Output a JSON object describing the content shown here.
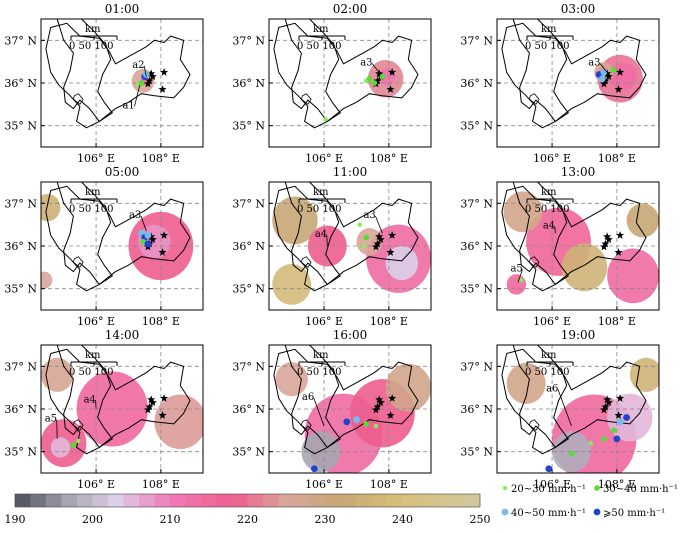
{
  "chart_data": {
    "type": "map-panels",
    "lon_range": [
      104.3,
      109.3
    ],
    "lat_range": [
      34.5,
      37.5
    ],
    "x_ticks": [
      {
        "v": 106,
        "label": "106° E"
      },
      {
        "v": 108,
        "label": "108° E"
      }
    ],
    "y_ticks": [
      {
        "v": 37,
        "label": "37° N"
      },
      {
        "v": 36,
        "label": "36° N"
      },
      {
        "v": 35,
        "label": "35° N"
      }
    ],
    "scale_bar": {
      "unit": "km",
      "labels": [
        "0",
        "50",
        "100"
      ]
    },
    "stations": [
      [
        107.65,
        36.05
      ],
      [
        107.75,
        36.15
      ],
      [
        107.7,
        36.22
      ],
      [
        107.6,
        35.98
      ],
      [
        108.1,
        36.25
      ],
      [
        108.05,
        35.85
      ]
    ],
    "colorbar": {
      "min": 190,
      "max": 250,
      "ticks": [
        190,
        200,
        210,
        220,
        230,
        240,
        250
      ]
    },
    "legend": [
      {
        "label": "20~30 mm·h⁻¹",
        "color": "#88ee55",
        "size": "small"
      },
      {
        "label": "30~40 mm·h⁻¹",
        "color": "#55dd33",
        "size": "medium"
      },
      {
        "label": "40~50 mm·h⁻¹",
        "color": "#77bbee",
        "size": "large"
      },
      {
        "label": "⩾50 mm·h⁻¹",
        "color": "#2244cc",
        "size": "large"
      }
    ],
    "panels": [
      {
        "time": "01:00",
        "labels": [
          {
            "text": "a2",
            "lon": 107.3,
            "lat": 36.45,
            "tlon": 107.55,
            "tlat": 36.15
          },
          {
            "text": "a1",
            "lon": 107.0,
            "lat": 35.5,
            "tlon": 107.35,
            "tlat": 35.95
          }
        ],
        "cloud": [
          {
            "lon": 107.45,
            "lat": 36.05,
            "r": 0.35,
            "v": 225
          },
          {
            "lon": 107.5,
            "lat": 36.05,
            "r": 0.12,
            "v": 215
          }
        ],
        "rain": [
          {
            "lon": 107.5,
            "lat": 36.15,
            "c": 3
          },
          {
            "lon": 107.55,
            "lat": 36.2,
            "c": 2
          },
          {
            "lon": 107.3,
            "lat": 35.95,
            "c": 0
          },
          {
            "lon": 107.4,
            "lat": 36.0,
            "c": 1
          }
        ]
      },
      {
        "time": "02:00",
        "labels": [
          {
            "text": "a3",
            "lon": 107.3,
            "lat": 36.5,
            "tlon": 107.7,
            "tlat": 36.25
          }
        ],
        "cloud": [
          {
            "lon": 107.9,
            "lat": 36.1,
            "r": 0.55,
            "v": 222
          },
          {
            "lon": 107.95,
            "lat": 36.15,
            "r": 0.25,
            "v": 212
          }
        ],
        "rain": [
          {
            "lon": 107.3,
            "lat": 36.05,
            "c": 0
          },
          {
            "lon": 107.4,
            "lat": 36.1,
            "c": 1
          },
          {
            "lon": 107.55,
            "lat": 36.0,
            "c": 1
          },
          {
            "lon": 107.8,
            "lat": 36.15,
            "c": 1
          },
          {
            "lon": 106.05,
            "lat": 35.15,
            "c": 0
          }
        ]
      },
      {
        "time": "03:00",
        "labels": [
          {
            "text": "a3",
            "lon": 107.3,
            "lat": 36.5,
            "tlon": 107.75,
            "tlat": 36.2
          }
        ],
        "cloud": [
          {
            "lon": 108.1,
            "lat": 36.1,
            "r": 0.7,
            "v": 220
          },
          {
            "lon": 108.2,
            "lat": 36.15,
            "r": 0.4,
            "v": 214
          },
          {
            "lon": 107.6,
            "lat": 36.25,
            "r": 0.3,
            "v": 226
          }
        ],
        "rain": [
          {
            "lon": 107.45,
            "lat": 36.2,
            "c": 3
          },
          {
            "lon": 107.55,
            "lat": 36.1,
            "c": 2
          },
          {
            "lon": 107.6,
            "lat": 36.25,
            "c": 2
          },
          {
            "lon": 107.9,
            "lat": 36.3,
            "c": 1
          }
        ]
      },
      {
        "time": "05:00",
        "labels": [
          {
            "text": "a3",
            "lon": 107.2,
            "lat": 36.75,
            "tlon": 107.55,
            "tlat": 36.35
          }
        ],
        "cloud": [
          {
            "lon": 108.0,
            "lat": 36.0,
            "r": 1.0,
            "v": 218
          },
          {
            "lon": 107.8,
            "lat": 36.1,
            "r": 0.5,
            "v": 208
          },
          {
            "lon": 104.5,
            "lat": 36.9,
            "r": 0.4,
            "v": 235
          },
          {
            "lon": 104.4,
            "lat": 35.2,
            "r": 0.25,
            "v": 225
          }
        ],
        "rain": [
          {
            "lon": 107.4,
            "lat": 36.3,
            "c": 2
          },
          {
            "lon": 107.5,
            "lat": 36.2,
            "c": 3
          },
          {
            "lon": 107.6,
            "lat": 36.25,
            "c": 2
          },
          {
            "lon": 107.45,
            "lat": 36.1,
            "c": 1
          },
          {
            "lon": 107.6,
            "lat": 36.05,
            "c": 3
          }
        ]
      },
      {
        "time": "11:00",
        "labels": [
          {
            "text": "a3",
            "lon": 107.4,
            "lat": 36.75,
            "tlon": 107.8,
            "tlat": 36.3
          },
          {
            "text": "a4",
            "lon": 105.9,
            "lat": 36.3,
            "tlon": 106.1,
            "tlat": 36.0
          }
        ],
        "cloud": [
          {
            "lon": 108.3,
            "lat": 35.7,
            "r": 1.0,
            "v": 214
          },
          {
            "lon": 108.4,
            "lat": 35.6,
            "r": 0.5,
            "v": 203
          },
          {
            "lon": 106.1,
            "lat": 36.0,
            "r": 0.6,
            "v": 218
          },
          {
            "lon": 105.1,
            "lat": 36.6,
            "r": 0.7,
            "v": 232
          },
          {
            "lon": 105.0,
            "lat": 35.1,
            "r": 0.6,
            "v": 238
          },
          {
            "lon": 107.4,
            "lat": 36.1,
            "r": 0.4,
            "v": 225
          }
        ],
        "rain": [
          {
            "lon": 107.1,
            "lat": 36.5,
            "c": 0
          },
          {
            "lon": 107.3,
            "lat": 36.2,
            "c": 1
          },
          {
            "lon": 107.2,
            "lat": 36.0,
            "c": 0
          }
        ]
      },
      {
        "time": "13:00",
        "labels": [
          {
            "text": "a4",
            "lon": 105.9,
            "lat": 36.5,
            "tlon": 106.1,
            "tlat": 36.3
          },
          {
            "text": "a5",
            "lon": 104.9,
            "lat": 35.5,
            "tlon": 104.95,
            "tlat": 35.15
          }
        ],
        "cloud": [
          {
            "lon": 106.2,
            "lat": 36.1,
            "r": 1.0,
            "v": 216
          },
          {
            "lon": 108.5,
            "lat": 35.3,
            "r": 0.8,
            "v": 214
          },
          {
            "lon": 105.1,
            "lat": 36.8,
            "r": 0.6,
            "v": 228
          },
          {
            "lon": 104.9,
            "lat": 35.1,
            "r": 0.3,
            "v": 215
          },
          {
            "lon": 107.0,
            "lat": 35.5,
            "r": 0.7,
            "v": 236
          },
          {
            "lon": 108.8,
            "lat": 36.6,
            "r": 0.5,
            "v": 232
          }
        ],
        "rain": [
          {
            "lon": 105.05,
            "lat": 35.2,
            "c": 0
          }
        ]
      },
      {
        "time": "14:00",
        "labels": [
          {
            "text": "a4",
            "lon": 105.8,
            "lat": 36.25,
            "tlon": 106.0,
            "tlat": 36.0
          },
          {
            "text": "a5",
            "lon": 104.6,
            "lat": 35.8,
            "tlon": 104.8,
            "tlat": 35.3
          }
        ],
        "cloud": [
          {
            "lon": 106.5,
            "lat": 36.0,
            "r": 1.1,
            "v": 215
          },
          {
            "lon": 105.0,
            "lat": 35.2,
            "r": 0.7,
            "v": 218
          },
          {
            "lon": 104.9,
            "lat": 35.1,
            "r": 0.3,
            "v": 205
          },
          {
            "lon": 108.6,
            "lat": 35.7,
            "r": 0.8,
            "v": 224
          },
          {
            "lon": 104.8,
            "lat": 36.8,
            "r": 0.5,
            "v": 226
          }
        ],
        "rain": [
          {
            "lon": 105.3,
            "lat": 35.15,
            "c": 1
          },
          {
            "lon": 105.45,
            "lat": 35.25,
            "c": 0
          }
        ]
      },
      {
        "time": "16:00",
        "labels": [
          {
            "text": "a6",
            "lon": 105.5,
            "lat": 36.3,
            "tlon": 106.0,
            "tlat": 35.6
          }
        ],
        "cloud": [
          {
            "lon": 106.6,
            "lat": 35.4,
            "r": 1.2,
            "v": 214
          },
          {
            "lon": 105.9,
            "lat": 35.0,
            "r": 0.6,
            "v": 197
          },
          {
            "lon": 107.8,
            "lat": 35.9,
            "r": 1.0,
            "v": 218
          },
          {
            "lon": 105.0,
            "lat": 36.7,
            "r": 0.5,
            "v": 225
          },
          {
            "lon": 108.6,
            "lat": 36.5,
            "r": 0.7,
            "v": 228
          }
        ],
        "rain": [
          {
            "lon": 107.0,
            "lat": 35.75,
            "c": 2
          },
          {
            "lon": 107.3,
            "lat": 35.65,
            "c": 1
          },
          {
            "lon": 107.6,
            "lat": 35.6,
            "c": 0
          },
          {
            "lon": 105.7,
            "lat": 34.6,
            "c": 3
          },
          {
            "lon": 106.7,
            "lat": 35.7,
            "c": 3
          }
        ]
      },
      {
        "time": "19:00",
        "labels": [
          {
            "text": "a6",
            "lon": 106.0,
            "lat": 36.5,
            "tlon": 106.6,
            "tlat": 35.6
          }
        ],
        "cloud": [
          {
            "lon": 107.3,
            "lat": 35.3,
            "r": 1.3,
            "v": 215
          },
          {
            "lon": 106.6,
            "lat": 35.0,
            "r": 0.6,
            "v": 198
          },
          {
            "lon": 108.4,
            "lat": 35.8,
            "r": 0.7,
            "v": 205
          },
          {
            "lon": 105.2,
            "lat": 36.6,
            "r": 0.6,
            "v": 228
          },
          {
            "lon": 108.9,
            "lat": 36.8,
            "r": 0.5,
            "v": 236
          }
        ],
        "rain": [
          {
            "lon": 107.9,
            "lat": 35.5,
            "c": 1
          },
          {
            "lon": 108.1,
            "lat": 35.7,
            "c": 2
          },
          {
            "lon": 108.3,
            "lat": 35.8,
            "c": 3
          },
          {
            "lon": 107.6,
            "lat": 35.3,
            "c": 1
          },
          {
            "lon": 107.2,
            "lat": 35.2,
            "c": 0
          },
          {
            "lon": 106.6,
            "lat": 34.95,
            "c": 1
          },
          {
            "lon": 108.0,
            "lat": 35.3,
            "c": 3
          },
          {
            "lon": 105.9,
            "lat": 34.6,
            "c": 3
          }
        ]
      }
    ]
  }
}
